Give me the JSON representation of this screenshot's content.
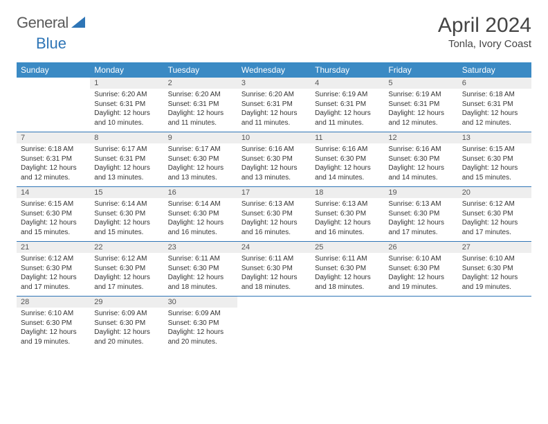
{
  "brand": {
    "part1": "General",
    "part2": "Blue"
  },
  "title": "April 2024",
  "location": "Tonla, Ivory Coast",
  "colors": {
    "header_bg": "#3b8ac4",
    "header_text": "#ffffff",
    "row_border": "#2e75b6",
    "daynum_bg": "#eeeeee",
    "logo_gray": "#5a5a5a",
    "logo_blue": "#2e75b6"
  },
  "weekdays": [
    "Sunday",
    "Monday",
    "Tuesday",
    "Wednesday",
    "Thursday",
    "Friday",
    "Saturday"
  ],
  "weeks": [
    [
      null,
      {
        "n": 1,
        "sr": "6:20 AM",
        "ss": "6:31 PM",
        "dl": "12 hours and 10 minutes."
      },
      {
        "n": 2,
        "sr": "6:20 AM",
        "ss": "6:31 PM",
        "dl": "12 hours and 11 minutes."
      },
      {
        "n": 3,
        "sr": "6:20 AM",
        "ss": "6:31 PM",
        "dl": "12 hours and 11 minutes."
      },
      {
        "n": 4,
        "sr": "6:19 AM",
        "ss": "6:31 PM",
        "dl": "12 hours and 11 minutes."
      },
      {
        "n": 5,
        "sr": "6:19 AM",
        "ss": "6:31 PM",
        "dl": "12 hours and 12 minutes."
      },
      {
        "n": 6,
        "sr": "6:18 AM",
        "ss": "6:31 PM",
        "dl": "12 hours and 12 minutes."
      }
    ],
    [
      {
        "n": 7,
        "sr": "6:18 AM",
        "ss": "6:31 PM",
        "dl": "12 hours and 12 minutes."
      },
      {
        "n": 8,
        "sr": "6:17 AM",
        "ss": "6:31 PM",
        "dl": "12 hours and 13 minutes."
      },
      {
        "n": 9,
        "sr": "6:17 AM",
        "ss": "6:30 PM",
        "dl": "12 hours and 13 minutes."
      },
      {
        "n": 10,
        "sr": "6:16 AM",
        "ss": "6:30 PM",
        "dl": "12 hours and 13 minutes."
      },
      {
        "n": 11,
        "sr": "6:16 AM",
        "ss": "6:30 PM",
        "dl": "12 hours and 14 minutes."
      },
      {
        "n": 12,
        "sr": "6:16 AM",
        "ss": "6:30 PM",
        "dl": "12 hours and 14 minutes."
      },
      {
        "n": 13,
        "sr": "6:15 AM",
        "ss": "6:30 PM",
        "dl": "12 hours and 15 minutes."
      }
    ],
    [
      {
        "n": 14,
        "sr": "6:15 AM",
        "ss": "6:30 PM",
        "dl": "12 hours and 15 minutes."
      },
      {
        "n": 15,
        "sr": "6:14 AM",
        "ss": "6:30 PM",
        "dl": "12 hours and 15 minutes."
      },
      {
        "n": 16,
        "sr": "6:14 AM",
        "ss": "6:30 PM",
        "dl": "12 hours and 16 minutes."
      },
      {
        "n": 17,
        "sr": "6:13 AM",
        "ss": "6:30 PM",
        "dl": "12 hours and 16 minutes."
      },
      {
        "n": 18,
        "sr": "6:13 AM",
        "ss": "6:30 PM",
        "dl": "12 hours and 16 minutes."
      },
      {
        "n": 19,
        "sr": "6:13 AM",
        "ss": "6:30 PM",
        "dl": "12 hours and 17 minutes."
      },
      {
        "n": 20,
        "sr": "6:12 AM",
        "ss": "6:30 PM",
        "dl": "12 hours and 17 minutes."
      }
    ],
    [
      {
        "n": 21,
        "sr": "6:12 AM",
        "ss": "6:30 PM",
        "dl": "12 hours and 17 minutes."
      },
      {
        "n": 22,
        "sr": "6:12 AM",
        "ss": "6:30 PM",
        "dl": "12 hours and 17 minutes."
      },
      {
        "n": 23,
        "sr": "6:11 AM",
        "ss": "6:30 PM",
        "dl": "12 hours and 18 minutes."
      },
      {
        "n": 24,
        "sr": "6:11 AM",
        "ss": "6:30 PM",
        "dl": "12 hours and 18 minutes."
      },
      {
        "n": 25,
        "sr": "6:11 AM",
        "ss": "6:30 PM",
        "dl": "12 hours and 18 minutes."
      },
      {
        "n": 26,
        "sr": "6:10 AM",
        "ss": "6:30 PM",
        "dl": "12 hours and 19 minutes."
      },
      {
        "n": 27,
        "sr": "6:10 AM",
        "ss": "6:30 PM",
        "dl": "12 hours and 19 minutes."
      }
    ],
    [
      {
        "n": 28,
        "sr": "6:10 AM",
        "ss": "6:30 PM",
        "dl": "12 hours and 19 minutes."
      },
      {
        "n": 29,
        "sr": "6:09 AM",
        "ss": "6:30 PM",
        "dl": "12 hours and 20 minutes."
      },
      {
        "n": 30,
        "sr": "6:09 AM",
        "ss": "6:30 PM",
        "dl": "12 hours and 20 minutes."
      },
      null,
      null,
      null,
      null
    ]
  ],
  "labels": {
    "sunrise": "Sunrise:",
    "sunset": "Sunset:",
    "daylight": "Daylight:"
  }
}
